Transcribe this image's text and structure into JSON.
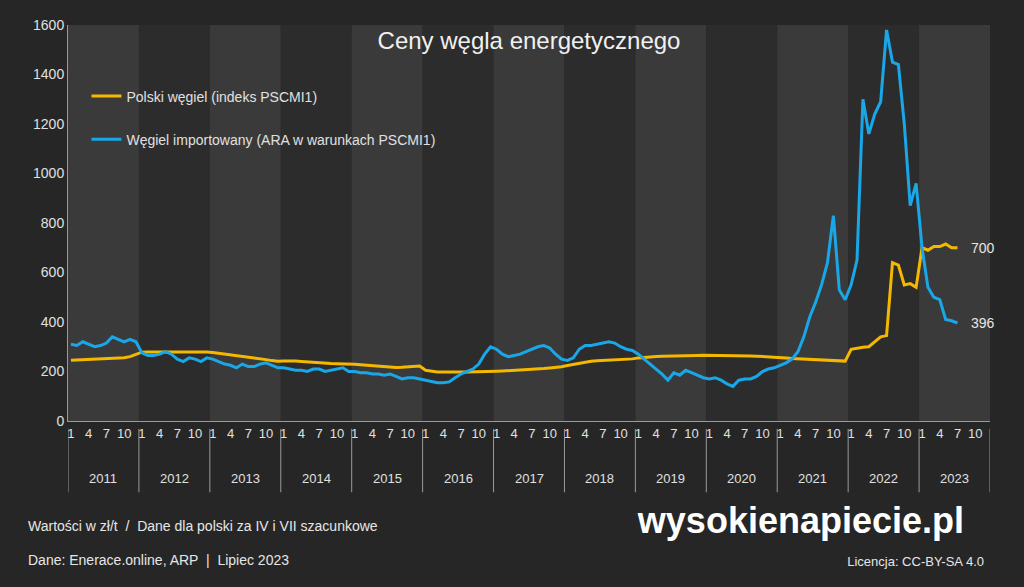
{
  "chart_data": {
    "type": "line",
    "title": "Ceny węgla energetycznego",
    "categories": [
      "1",
      null,
      null,
      "4",
      null,
      null,
      "7",
      null,
      null,
      "10",
      null,
      null,
      "1",
      null,
      null,
      "4",
      null,
      null,
      "7",
      null,
      null,
      "10",
      null,
      null,
      "1",
      null,
      null,
      "4",
      null,
      null,
      "7",
      null,
      null,
      "10",
      null,
      null,
      "1",
      null,
      null,
      "4",
      null,
      null,
      "7",
      null,
      null,
      "10",
      null,
      null,
      "1",
      null,
      null,
      "4",
      null,
      null,
      "7",
      null,
      null,
      "10",
      null,
      null,
      "1",
      null,
      null,
      "4",
      null,
      null,
      "7",
      null,
      null,
      "10",
      null,
      null,
      "1",
      null,
      null,
      "4",
      null,
      null,
      "7",
      null,
      null,
      "10",
      null,
      null,
      "1",
      null,
      null,
      "4",
      null,
      null,
      "7",
      null,
      null,
      "10",
      null,
      null,
      "1",
      null,
      null,
      "4",
      null,
      null,
      "7",
      null,
      null,
      "10",
      null,
      null,
      "1",
      null,
      null,
      "4",
      null,
      null,
      "7",
      null,
      null,
      "10",
      null,
      null,
      "1",
      null,
      null,
      "4",
      null,
      null,
      "7",
      null,
      null,
      "10",
      null,
      null,
      "1",
      null,
      null,
      "4",
      null,
      null,
      "7",
      null,
      null,
      "10",
      null,
      null,
      "1",
      null,
      null,
      "4",
      null,
      null,
      "7",
      null,
      null,
      "10",
      null,
      null
    ],
    "groups": [
      "2011",
      "2012",
      "2013",
      "2014",
      "2015",
      "2016",
      "2017",
      "2018",
      "2019",
      "2020",
      "2021",
      "2022",
      "2023"
    ],
    "series": [
      {
        "name": "Polski węgiel (indeks PSCMI1)",
        "color": "#f5b800",
        "values": [
          245,
          246,
          248,
          250,
          251,
          252,
          252,
          252,
          253,
          256,
          260,
          268,
          278,
          279,
          279,
          279,
          280,
          280,
          281,
          281,
          281,
          281,
          280,
          279,
          277,
          274,
          271,
          268,
          266,
          263,
          260,
          256,
          252,
          248,
          244,
          241,
          242,
          243,
          242,
          240,
          238,
          236,
          235,
          233,
          232,
          231,
          231,
          230,
          229,
          227,
          225,
          222,
          220,
          218,
          216,
          216,
          217,
          218,
          219,
          222,
          205,
          200,
          198,
          198,
          197,
          197,
          198,
          198,
          198,
          199,
          200,
          200,
          201,
          202,
          203,
          204,
          205,
          206,
          208,
          210,
          212,
          214,
          216,
          219,
          224,
          229,
          234,
          238,
          241,
          243,
          244,
          245,
          246,
          247,
          248,
          251,
          255,
          258,
          260,
          261,
          262,
          263,
          262,
          264,
          265,
          265,
          265,
          266,
          266,
          265,
          265,
          266,
          265,
          264,
          264,
          263,
          262,
          261,
          260,
          258,
          256,
          255,
          253,
          252,
          251,
          250,
          249,
          248,
          248,
          247,
          246,
          242,
          290,
          295,
          298,
          300,
          320,
          340,
          345,
          640,
          630,
          550,
          555,
          540,
          700,
          690,
          705,
          705,
          715,
          700,
          700,
          null,
          null,
          null,
          null,
          null
        ]
      },
      {
        "name": "Węgiel importowany (ARA w warunkach PSCMI1)",
        "color": "#1aa7e8",
        "values": [
          310,
          305,
          320,
          310,
          300,
          305,
          315,
          340,
          330,
          320,
          330,
          320,
          275,
          265,
          265,
          270,
          280,
          270,
          250,
          240,
          255,
          250,
          240,
          255,
          250,
          240,
          230,
          225,
          215,
          230,
          220,
          220,
          230,
          235,
          225,
          215,
          215,
          210,
          205,
          205,
          200,
          210,
          210,
          200,
          205,
          210,
          215,
          200,
          200,
          195,
          195,
          190,
          190,
          185,
          190,
          180,
          170,
          175,
          175,
          170,
          165,
          160,
          155,
          155,
          158,
          175,
          190,
          200,
          210,
          230,
          270,
          300,
          290,
          270,
          260,
          265,
          270,
          280,
          290,
          300,
          305,
          295,
          270,
          250,
          245,
          255,
          290,
          305,
          305,
          310,
          315,
          320,
          315,
          300,
          290,
          285,
          270,
          250,
          230,
          210,
          190,
          165,
          195,
          185,
          205,
          195,
          185,
          175,
          170,
          175,
          165,
          150,
          140,
          165,
          170,
          170,
          180,
          200,
          210,
          215,
          225,
          235,
          250,
          280,
          340,
          420,
          480,
          550,
          640,
          830,
          530,
          490,
          550,
          650,
          1300,
          1160,
          1240,
          1290,
          1580,
          1450,
          1440,
          1200,
          870,
          960,
          700,
          540,
          500,
          490,
          410,
          405,
          396,
          null,
          null,
          null,
          null,
          null
        ]
      }
    ],
    "annotations": [
      {
        "text": "700",
        "series": "Polski węgiel (indeks PSCMI1)"
      },
      {
        "text": "396",
        "series": "Węgiel importowany (ARA w warunkach PSCMI1)"
      }
    ],
    "ylim": [
      0,
      1600
    ],
    "yticks": [
      0,
      200,
      400,
      600,
      800,
      1000,
      1200,
      1400,
      1600
    ],
    "grid": false,
    "legend": "top-left",
    "notes": [
      "Wartości w zł/t  /  Dane dla polski za IV i VII szacunkowe",
      "Dane: Enerace.online, ARP  |  Lipiec 2023"
    ],
    "logo": "wysokienapiecie.pl",
    "license": "Licencja: CC-BY-SA 4.0"
  }
}
